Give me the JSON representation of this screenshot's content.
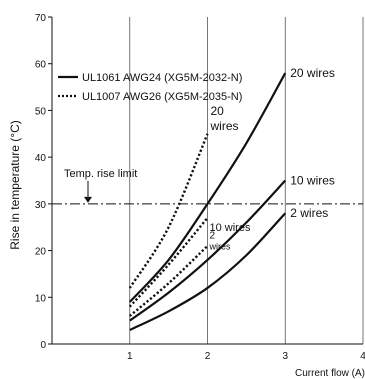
{
  "chart_data": {
    "type": "line",
    "xlabel": "Current flow (A)",
    "ylabel": "Rise in temperature (°C)",
    "xlim": [
      0,
      4
    ],
    "ylim": [
      0,
      70
    ],
    "xticks": [
      1,
      2,
      3,
      4
    ],
    "yticks": [
      0,
      10,
      20,
      30,
      40,
      50,
      60,
      70
    ],
    "grid": "vertical",
    "legend": {
      "placement": "top-left",
      "entries": [
        {
          "label": "UL1061 AWG24 (XG5M-2032-N)",
          "style": "solid"
        },
        {
          "label": "UL1007 AWG26 (XG5M-2035-N)",
          "style": "dotted"
        }
      ]
    },
    "annotations": {
      "limit_label": "Temp. rise limit",
      "limit_value": 30
    },
    "series": [
      {
        "name": "UL1061 AWG24 (XG5M-2032-N)",
        "label": "20 wires",
        "style": "solid",
        "x": [
          1,
          1.5,
          2,
          2.5,
          3
        ],
        "y": [
          9,
          18,
          30,
          43,
          58
        ]
      },
      {
        "name": "UL1061 AWG24 (XG5M-2032-N)",
        "label": "10 wires",
        "style": "solid",
        "x": [
          1,
          1.5,
          2,
          2.5,
          3
        ],
        "y": [
          5,
          11,
          18,
          26,
          35
        ]
      },
      {
        "name": "UL1061 AWG24 (XG5M-2032-N)",
        "label": "2 wires",
        "style": "solid",
        "x": [
          1,
          1.5,
          2,
          2.5,
          3
        ],
        "y": [
          3,
          7,
          12,
          19,
          28
        ]
      },
      {
        "name": "UL1007 AWG26 (XG5M-2035-N)",
        "label": "20",
        "label2": "wires",
        "style": "dotted",
        "x": [
          1,
          1.5,
          2
        ],
        "y": [
          12,
          25,
          45
        ]
      },
      {
        "name": "UL1007 AWG26 (XG5M-2035-N)",
        "label": "10 wires",
        "style": "dotted",
        "x": [
          1,
          1.5,
          2
        ],
        "y": [
          8,
          17,
          27
        ]
      },
      {
        "name": "UL1007 AWG26 (XG5M-2035-N)",
        "label": "2",
        "label2": "wires",
        "style": "dotted",
        "x": [
          1,
          1.5,
          2
        ],
        "y": [
          6,
          13,
          21
        ]
      }
    ]
  }
}
